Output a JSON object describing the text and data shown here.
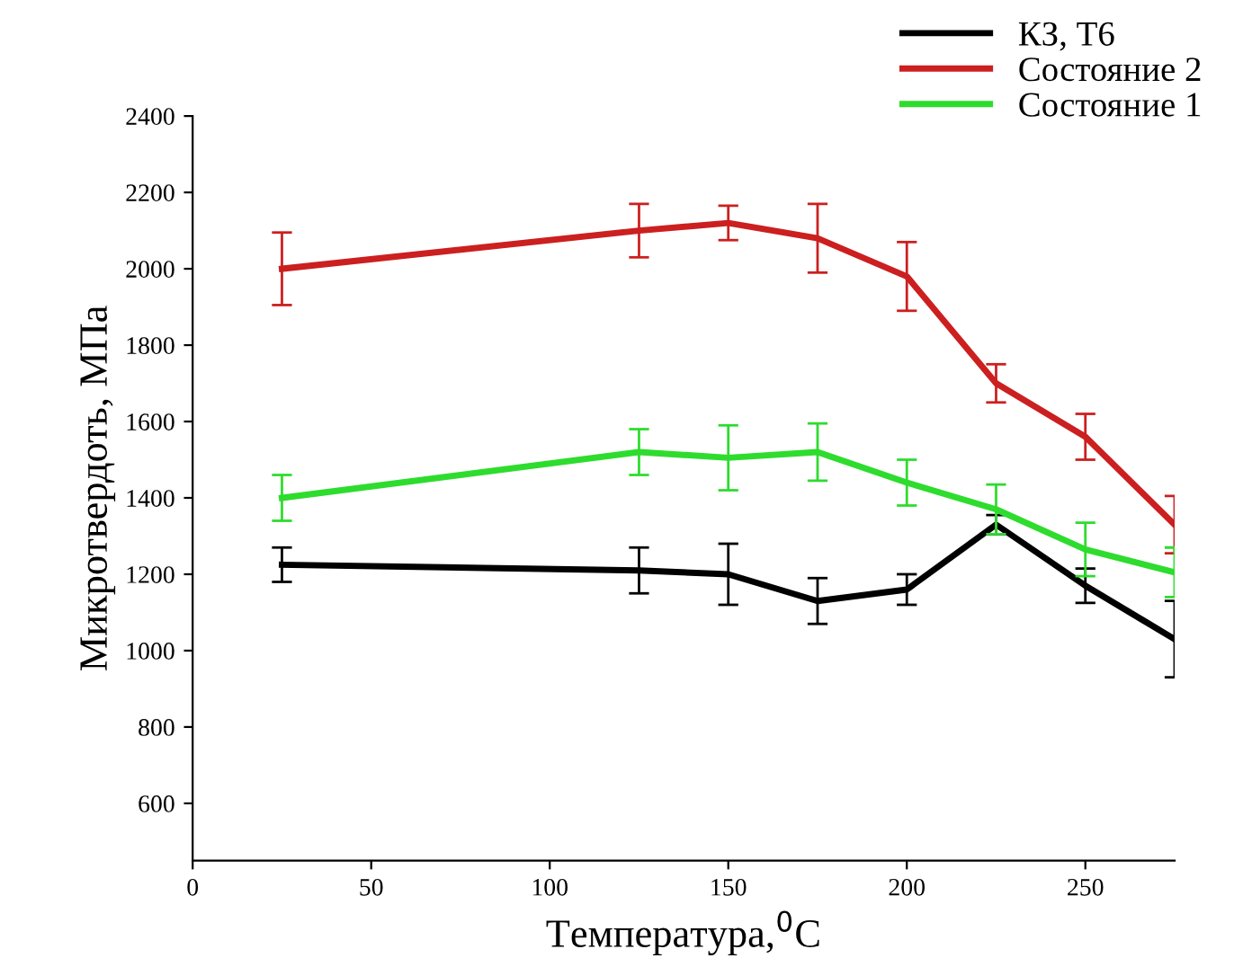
{
  "chart_data": {
    "type": "line",
    "xlabel": "Температура,$^{0}$C",
    "ylabel": "Микротвердоть, МПа",
    "x": [
      25,
      125,
      150,
      175,
      200,
      225,
      250,
      275
    ],
    "series": [
      {
        "name": "КЗ, Т6",
        "color": "#000000",
        "values": [
          1225,
          1210,
          1200,
          1130,
          1160,
          1330,
          1170,
          1030
        ],
        "errors": [
          45,
          60,
          80,
          60,
          40,
          25,
          45,
          100
        ]
      },
      {
        "name": "Состояние 2",
        "color": "#cc1f1f",
        "values": [
          2000,
          2100,
          2120,
          2080,
          1980,
          1700,
          1560,
          1330
        ],
        "errors": [
          95,
          70,
          45,
          90,
          90,
          50,
          60,
          75
        ]
      },
      {
        "name": "Состояние 1",
        "color": "#2edc2e",
        "values": [
          1400,
          1520,
          1505,
          1520,
          1440,
          1370,
          1265,
          1205
        ],
        "errors": [
          60,
          60,
          85,
          75,
          60,
          65,
          70,
          65
        ]
      }
    ],
    "xlim": [
      0,
      275
    ],
    "xticks": [
      0,
      50,
      100,
      150,
      200,
      250
    ],
    "ylim": [
      450,
      2400
    ],
    "yticks": [
      600,
      800,
      1000,
      1200,
      1400,
      1600,
      1800,
      2000,
      2200,
      2400
    ],
    "grid": false,
    "legend": "top right",
    "marker": "none",
    "line_style": "solid"
  }
}
